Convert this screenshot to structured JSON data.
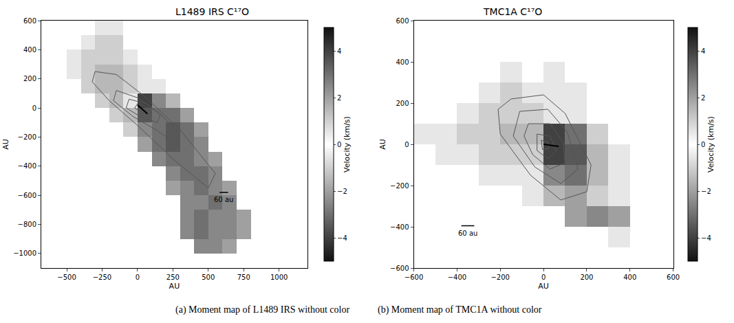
{
  "chart_data": [
    {
      "type": "heatmap",
      "title": "L1489 IRS C¹⁷O",
      "x_label": "AU",
      "y_label": "AU",
      "caption": "(a) Moment map of L1489 IRS without color",
      "xlim": [
        -680,
        1200
      ],
      "ylim": [
        -1100,
        600
      ],
      "xticks": [
        -500,
        -250,
        0,
        250,
        500,
        750,
        1000
      ],
      "yticks": [
        -1000,
        -800,
        -600,
        -400,
        -200,
        0,
        200,
        400,
        600
      ],
      "grid": false,
      "x": [
        -650,
        -550,
        -450,
        -350,
        -250,
        -150,
        -50,
        50,
        150,
        250,
        350,
        450,
        550,
        650,
        750,
        850,
        950,
        1050,
        1150
      ],
      "y": [
        -1050,
        -950,
        -850,
        -750,
        -650,
        -550,
        -450,
        -350,
        -250,
        -150,
        -50,
        50,
        150,
        250,
        350,
        450,
        550
      ],
      "z": [
        [
          null,
          null,
          null,
          null,
          null,
          null,
          null,
          null,
          null,
          null,
          null,
          null,
          null,
          null,
          null,
          null,
          null,
          null,
          null
        ],
        [
          null,
          null,
          null,
          null,
          null,
          null,
          null,
          null,
          null,
          null,
          null,
          2.5,
          2.5,
          2.0,
          null,
          null,
          null,
          null,
          null
        ],
        [
          null,
          null,
          null,
          null,
          null,
          null,
          null,
          null,
          null,
          null,
          2.5,
          3.0,
          2.5,
          2.5,
          2.0,
          null,
          null,
          null,
          null
        ],
        [
          null,
          null,
          null,
          null,
          null,
          null,
          null,
          null,
          null,
          null,
          2.5,
          3.0,
          2.5,
          2.5,
          2.0,
          null,
          null,
          null,
          null
        ],
        [
          null,
          null,
          null,
          null,
          null,
          null,
          null,
          null,
          null,
          null,
          2.5,
          2.5,
          3.0,
          2.5,
          null,
          null,
          null,
          null,
          null
        ],
        [
          null,
          null,
          null,
          null,
          null,
          null,
          null,
          null,
          null,
          2.0,
          2.5,
          3.0,
          2.5,
          2.0,
          null,
          null,
          null,
          null,
          null
        ],
        [
          null,
          null,
          null,
          null,
          null,
          null,
          null,
          null,
          null,
          2.5,
          3.0,
          3.0,
          2.5,
          null,
          null,
          null,
          null,
          null,
          null
        ],
        [
          null,
          null,
          null,
          null,
          null,
          null,
          null,
          null,
          2.5,
          3.0,
          3.0,
          2.5,
          2.0,
          null,
          null,
          null,
          null,
          null,
          null
        ],
        [
          null,
          null,
          null,
          null,
          null,
          null,
          null,
          2.0,
          3.0,
          3.5,
          3.0,
          2.5,
          null,
          null,
          null,
          null,
          null,
          null,
          null
        ],
        [
          null,
          null,
          null,
          null,
          null,
          null,
          1.0,
          2.5,
          3.0,
          3.5,
          3.0,
          2.0,
          null,
          null,
          null,
          null,
          null,
          null,
          null
        ],
        [
          null,
          null,
          null,
          null,
          null,
          -1.0,
          1.5,
          3.5,
          3.0,
          3.0,
          2.0,
          null,
          null,
          null,
          null,
          null,
          null,
          null,
          null
        ],
        [
          null,
          null,
          null,
          null,
          -1.0,
          -1.5,
          -0.5,
          4.0,
          2.5,
          1.5,
          null,
          null,
          null,
          null,
          null,
          null,
          null,
          null,
          null
        ],
        [
          null,
          null,
          null,
          -1.0,
          -1.5,
          -1.5,
          -1.0,
          0.5,
          0.5,
          null,
          null,
          null,
          null,
          null,
          null,
          null,
          null,
          null,
          null
        ],
        [
          null,
          null,
          -0.5,
          -1.0,
          -1.5,
          -1.5,
          -1.0,
          -0.5,
          null,
          null,
          null,
          null,
          null,
          null,
          null,
          null,
          null,
          null,
          null
        ],
        [
          null,
          null,
          -0.5,
          -1.0,
          -1.0,
          -1.0,
          -0.5,
          null,
          null,
          null,
          null,
          null,
          null,
          null,
          null,
          null,
          null,
          null,
          null
        ],
        [
          null,
          null,
          null,
          -0.5,
          -1.0,
          -1.0,
          null,
          null,
          null,
          null,
          null,
          null,
          null,
          null,
          null,
          null,
          null,
          null,
          null
        ],
        [
          null,
          null,
          null,
          null,
          -0.5,
          -0.5,
          null,
          null,
          null,
          null,
          null,
          null,
          null,
          null,
          null,
          null,
          null,
          null,
          null
        ]
      ],
      "colorbar": {
        "title": "Velocity (km/s)",
        "range": [
          -5,
          5
        ],
        "ticks": [
          -4,
          -2,
          0,
          2,
          4
        ]
      },
      "contours": [
        {
          "x": [
            -300,
            -150,
            50,
            300,
            550,
            500,
            250,
            0,
            -200,
            -320,
            -300
          ],
          "y": [
            250,
            230,
            80,
            -150,
            -450,
            -550,
            -350,
            -120,
            50,
            180,
            250
          ]
        },
        {
          "x": [
            -150,
            0,
            150,
            300,
            280,
            130,
            -30,
            -170,
            -150
          ],
          "y": [
            120,
            70,
            -30,
            -180,
            -250,
            -150,
            -60,
            50,
            120
          ]
        },
        {
          "x": [
            -60,
            60,
            160,
            140,
            20,
            -80,
            -60
          ],
          "y": [
            60,
            30,
            -50,
            -100,
            -60,
            0,
            60
          ]
        },
        {
          "x": [
            0,
            80,
            100,
            40,
            -20,
            0
          ],
          "y": [
            30,
            0,
            -40,
            -40,
            0,
            30
          ]
        }
      ],
      "axis_segment": {
        "x": [
          0,
          70
        ],
        "y": [
          20,
          -40
        ]
      },
      "scale_bar": {
        "x": [
          580,
          640
        ],
        "y": -580,
        "label": "60 au"
      }
    },
    {
      "type": "heatmap",
      "title": "TMC1A C¹⁷O",
      "x_label": "AU",
      "y_label": "AU",
      "caption": "(b) Moment map of TMC1A without color",
      "xlim": [
        -600,
        600
      ],
      "ylim": [
        -600,
        600
      ],
      "xticks": [
        -600,
        -400,
        -200,
        0,
        200,
        400,
        600
      ],
      "yticks": [
        -600,
        -400,
        -200,
        0,
        200,
        400,
        600
      ],
      "grid": false,
      "x": [
        -550,
        -450,
        -350,
        -250,
        -150,
        -50,
        50,
        150,
        250,
        350,
        450,
        550
      ],
      "y": [
        -550,
        -450,
        -350,
        -250,
        -150,
        -50,
        50,
        150,
        250,
        350,
        450,
        550
      ],
      "z": [
        [
          null,
          null,
          null,
          null,
          null,
          null,
          null,
          null,
          null,
          null,
          null,
          null
        ],
        [
          null,
          null,
          null,
          null,
          null,
          null,
          null,
          null,
          null,
          0.5,
          null,
          null
        ],
        [
          null,
          null,
          null,
          null,
          null,
          null,
          null,
          2.0,
          2.5,
          2.0,
          null,
          null
        ],
        [
          null,
          null,
          null,
          null,
          null,
          0.5,
          1.5,
          2.0,
          1.0,
          0.5,
          null,
          null
        ],
        [
          null,
          null,
          null,
          -0.5,
          -0.5,
          0.5,
          2.5,
          3.0,
          1.5,
          0.5,
          null,
          null
        ],
        [
          null,
          -0.5,
          -0.5,
          -1.0,
          -1.0,
          -1.0,
          4.0,
          3.5,
          1.5,
          0.5,
          null,
          null
        ],
        [
          -0.5,
          -0.5,
          -1.0,
          -1.0,
          -1.5,
          -1.5,
          4.0,
          3.0,
          1.0,
          null,
          null,
          null
        ],
        [
          null,
          null,
          -0.5,
          -1.0,
          -1.0,
          -1.0,
          -0.5,
          0.5,
          null,
          null,
          null,
          null
        ],
        [
          null,
          null,
          null,
          -0.5,
          -1.0,
          -0.5,
          -0.5,
          -0.5,
          null,
          null,
          null,
          null
        ],
        [
          null,
          null,
          null,
          null,
          -0.5,
          null,
          -0.5,
          null,
          null,
          null,
          null,
          null
        ],
        [
          null,
          null,
          null,
          null,
          null,
          null,
          null,
          null,
          null,
          null,
          null,
          null
        ],
        [
          null,
          null,
          null,
          null,
          null,
          null,
          null,
          null,
          null,
          null,
          null,
          null
        ]
      ],
      "colorbar": {
        "title": "Velocity (km/s)",
        "range": [
          -5,
          5
        ],
        "ticks": [
          -4,
          -2,
          0,
          2,
          4
        ]
      },
      "contours": [
        {
          "x": [
            -150,
            0,
            100,
            220,
            200,
            80,
            -60,
            -200,
            -210,
            -150
          ],
          "y": [
            220,
            240,
            150,
            -100,
            -230,
            -270,
            -150,
            50,
            170,
            220
          ]
        },
        {
          "x": [
            -110,
            20,
            110,
            160,
            80,
            -40,
            -140,
            -110
          ],
          "y": [
            160,
            170,
            60,
            -120,
            -190,
            -110,
            40,
            160
          ]
        },
        {
          "x": [
            -70,
            30,
            90,
            100,
            30,
            -50,
            -90,
            -70
          ],
          "y": [
            100,
            100,
            10,
            -90,
            -120,
            -50,
            40,
            100
          ]
        },
        {
          "x": [
            -30,
            30,
            60,
            20,
            -30,
            -30
          ],
          "y": [
            50,
            40,
            -30,
            -70,
            -30,
            50
          ]
        },
        {
          "x": [
            -10,
            20,
            25,
            -5,
            -10
          ],
          "y": [
            20,
            10,
            -20,
            -25,
            20
          ]
        }
      ],
      "axis_segment": {
        "x": [
          0,
          70
        ],
        "y": [
          0,
          -10
        ]
      },
      "scale_bar": {
        "x": [
          -380,
          -320
        ],
        "y": -395,
        "label": "60 au"
      }
    }
  ]
}
